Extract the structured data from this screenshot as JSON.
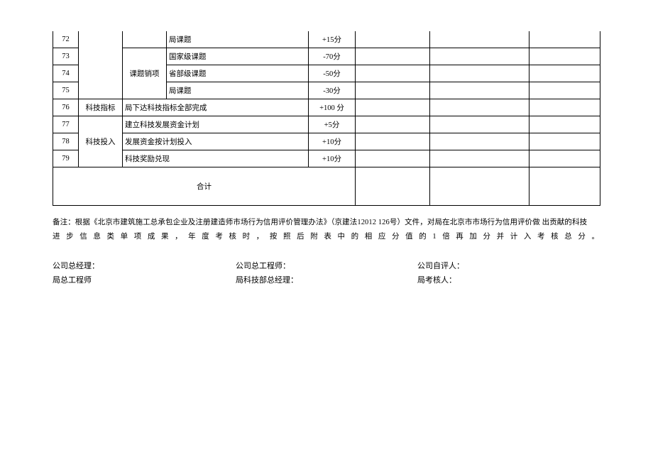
{
  "table": {
    "rows": [
      {
        "num": "72",
        "cat": "",
        "sub": "",
        "item": "局课题",
        "score": "+15分"
      },
      {
        "num": "73",
        "cat": "",
        "sub": "课题销项",
        "item": "国家级课题",
        "score": "-70分"
      },
      {
        "num": "74",
        "cat": "",
        "sub": "",
        "item": "省部级课题",
        "score": "-50分"
      },
      {
        "num": "75",
        "cat": "",
        "sub": "",
        "item": "局课题",
        "score": "-30分"
      },
      {
        "num": "76",
        "cat": "科技指标",
        "sub": "",
        "item": "局下达科技指标全部完成",
        "score": "+100 分"
      },
      {
        "num": "77",
        "cat": "科技投入",
        "sub": "",
        "item": "建立科技发展资金计划",
        "score": "+5分"
      },
      {
        "num": "78",
        "cat": "",
        "sub": "",
        "item": "发展资金按计划投入",
        "score": "+10分"
      },
      {
        "num": "79",
        "cat": "",
        "sub": "",
        "item": "科技奖励兑现",
        "score": "+10分"
      }
    ],
    "total_label": "合计"
  },
  "note": {
    "line1": "备注：根据《北京市建筑施工总承包企业及注册建造师市场行为信用评价管理办法》（京建法12012 126号）文件，对局在北京市市场行为信用评价做 出贡献的科技",
    "line2": "进步信息类单项成果，年度考核时，按照后附表中的相应分值的1倍再加分并计入考核总分。"
  },
  "signatures": {
    "row1": {
      "c1": "公司总经理：",
      "c2": "公司总工程师：",
      "c3": "公司自评人："
    },
    "row2": {
      "c1": "局总工程师",
      "c2": "局科技部总经理：",
      "c3": "局考核人："
    }
  }
}
